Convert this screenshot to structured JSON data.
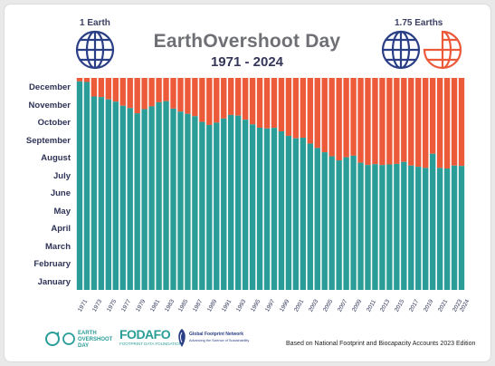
{
  "header": {
    "left_label": "1 Earth",
    "right_label": "1.75 Earths"
  },
  "colors": {
    "teal": "#2a9d98",
    "orange": "#ec5a3a",
    "navy": "#2e3357",
    "globe_blue": "#2b3f86"
  },
  "footer": {
    "source_note": "Based on National Footprint and Biocapacity Accounts 2023 Edition",
    "logo1": [
      "EARTH",
      "OVERSHOOT",
      "DAY"
    ],
    "logo2_name": "FODAFO",
    "logo2_sub": "FOOTPRINT DATA FOUNDATION",
    "logo3_name": "Global Footprint Network",
    "logo3_sub": "Advancing the Science of Sustainability",
    "icons": [
      "globe-icon",
      "half-globe-icon",
      "earth-overshoot-day-logo",
      "fodafo-logo",
      "global-footprint-network-logo"
    ]
  },
  "chart_data": {
    "type": "bar",
    "title": "EarthOvershoot Day",
    "subtitle": "1971 - 2024",
    "y_axis_labels": [
      "December",
      "November",
      "October",
      "September",
      "August",
      "July",
      "June",
      "May",
      "April",
      "March",
      "February",
      "January"
    ],
    "x_tick_labels": [
      "1971",
      "1973",
      "1975",
      "1977",
      "1979",
      "1981",
      "1983",
      "1985",
      "1987",
      "1989",
      "1991",
      "1993",
      "1995",
      "1997",
      "1999",
      "2001",
      "2003",
      "2005",
      "2007",
      "2009",
      "2011",
      "2013",
      "2015",
      "2017",
      "2019",
      "2021",
      "2023",
      "2024"
    ],
    "x": [
      1971,
      1972,
      1973,
      1974,
      1975,
      1976,
      1977,
      1978,
      1979,
      1980,
      1981,
      1982,
      1983,
      1984,
      1985,
      1986,
      1987,
      1988,
      1989,
      1990,
      1991,
      1992,
      1993,
      1994,
      1995,
      1996,
      1997,
      1998,
      1999,
      2000,
      2001,
      2002,
      2003,
      2004,
      2005,
      2006,
      2007,
      2008,
      2009,
      2010,
      2011,
      2012,
      2013,
      2014,
      2015,
      2016,
      2017,
      2018,
      2019,
      2020,
      2021,
      2022,
      2023,
      2024
    ],
    "series": [
      {
        "values": [
          "1971-12-25",
          "1972-12-24",
          "1973-11-29",
          "1974-11-28",
          "1975-11-24",
          "1976-11-20",
          "1977-11-13",
          "1978-11-09",
          "1979-10-31",
          "1980-11-07",
          "1981-11-12",
          "1982-11-19",
          "1983-11-21",
          "1984-11-08",
          "1985-11-03",
          "1986-10-30",
          "1987-10-26",
          "1988-10-16",
          "1989-10-11",
          "1990-10-15",
          "1991-10-22",
          "1992-10-28",
          "1993-10-27",
          "1994-10-20",
          "1995-10-12",
          "1996-10-06",
          "1997-10-05",
          "1998-10-06",
          "1999-09-30",
          "2000-09-22",
          "2001-09-18",
          "2002-09-19",
          "2003-09-09",
          "2004-09-01",
          "2005-08-25",
          "2006-08-18",
          "2007-08-11",
          "2008-08-16",
          "2009-08-19",
          "2010-08-07",
          "2011-08-03",
          "2012-08-04",
          "2013-08-03",
          "2014-08-04",
          "2015-08-05",
          "2016-08-08",
          "2017-08-02",
          "2018-07-31",
          "2019-07-29",
          "2020-08-22",
          "2021-07-29",
          "2022-07-28",
          "2023-08-02",
          "2024-08-01"
        ]
      }
    ],
    "legend": "none"
  }
}
